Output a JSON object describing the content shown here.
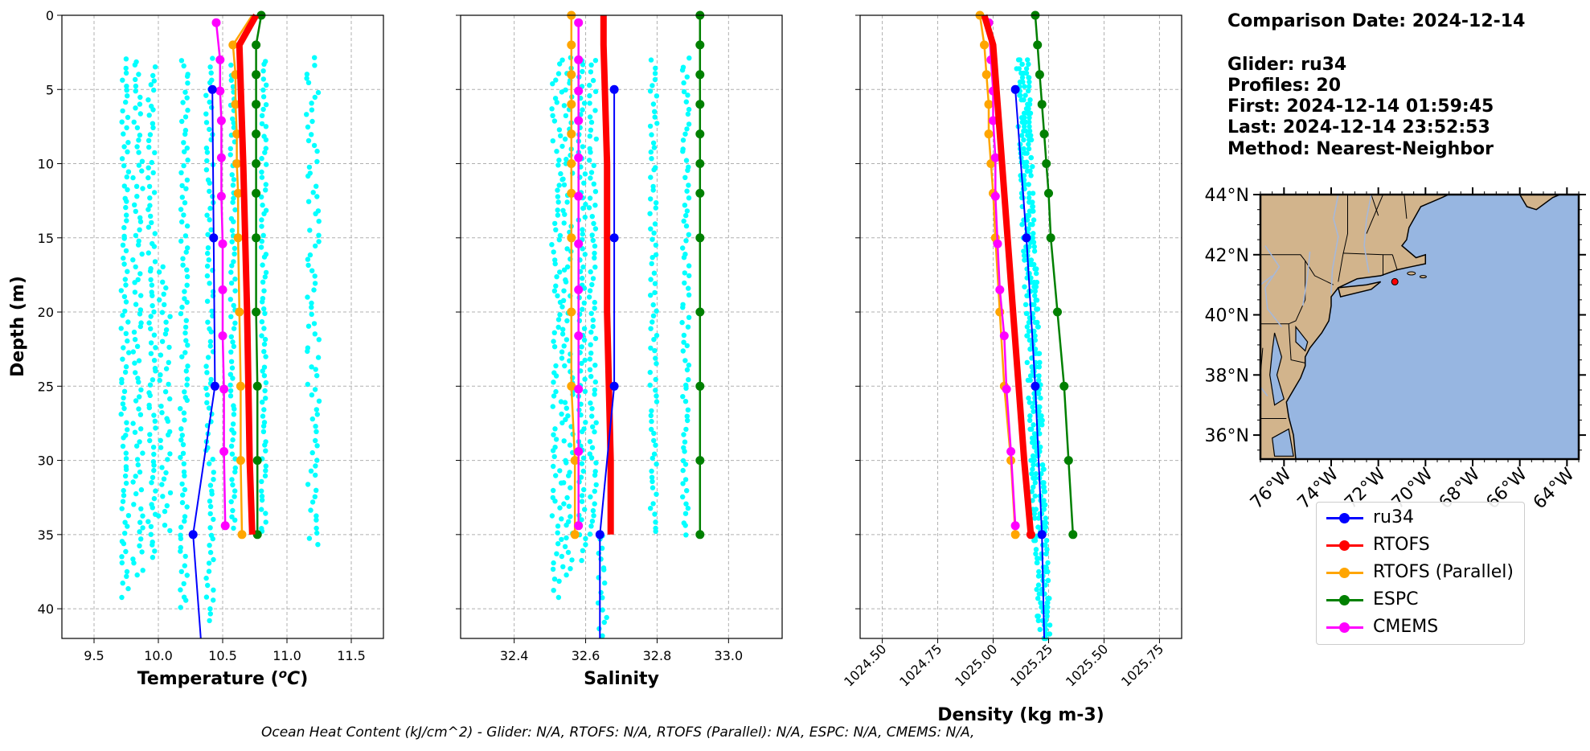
{
  "colors": {
    "ru34": "#0000ff",
    "RTOFS": "#ff0000",
    "RTOFS (Parallel)": "#ffa500",
    "ESPC": "#008000",
    "CMEMS": "#ff00ff",
    "glider_scatter": "#00ffff",
    "land": "#d2b48c",
    "ocean": "#97b6e1",
    "rivers": "#a6b8d9"
  },
  "info": {
    "comparison_date": "Comparison Date: 2024-12-14",
    "glider": "Glider: ru34",
    "profiles": "Profiles: 20",
    "first": "First: 2024-12-14 01:59:45",
    "last": "Last: 2024-12-14 23:52:53",
    "method": "Method: Nearest-Neighbor"
  },
  "footer": "Ocean Heat Content (kJ/cm^2) - Glider: N/A,  RTOFS: N/A,  RTOFS (Parallel): N/A,  ESPC: N/A,  CMEMS: N/A,",
  "legend": [
    "ru34",
    "RTOFS",
    "RTOFS (Parallel)",
    "ESPC",
    "CMEMS"
  ],
  "chart_data": [
    {
      "type": "line",
      "xlabel": "Temperature (°C)",
      "ylabel": "Depth (m)",
      "xlim": [
        9.25,
        11.75
      ],
      "ylim": [
        42,
        0
      ],
      "xticks": [
        "9.5",
        "10.0",
        "10.5",
        "11.0",
        "11.5"
      ],
      "xtick_values": [
        9.5,
        10.0,
        10.5,
        11.0,
        11.5
      ],
      "yticks": [
        "0",
        "5",
        "10",
        "15",
        "20",
        "25",
        "30",
        "35",
        "40"
      ],
      "grid": true,
      "glider_scatter_columns": [
        {
          "x": 9.74,
          "depth": [
            3,
            39.5
          ],
          "spread": 0.03
        },
        {
          "x": 9.84,
          "depth": [
            3,
            38
          ],
          "spread": 0.04
        },
        {
          "x": 9.95,
          "depth": [
            3.5,
            37
          ],
          "spread": 0.03
        },
        {
          "x": 10.05,
          "depth": [
            17,
            35
          ],
          "spread": 0.05
        },
        {
          "x": 10.2,
          "depth": [
            3,
            40
          ],
          "spread": 0.03
        },
        {
          "x": 10.4,
          "depth": [
            3,
            41
          ],
          "spread": 0.03
        },
        {
          "x": 10.58,
          "depth": [
            3.5,
            35
          ],
          "spread": 0.02
        },
        {
          "x": 10.82,
          "depth": [
            3,
            35
          ],
          "spread": 0.02
        },
        {
          "x": 11.2,
          "depth": [
            3,
            36
          ],
          "spread": 0.05
        }
      ],
      "series": [
        {
          "name": "ru34",
          "x": [
            10.42,
            10.43,
            10.44,
            10.27,
            10.33
          ],
          "depth": [
            5,
            15,
            25,
            35,
            42
          ],
          "markers": [
            5,
            15,
            25,
            35
          ]
        },
        {
          "name": "RTOFS",
          "x": [
            10.76,
            10.63,
            10.66,
            10.69,
            10.71,
            10.73
          ],
          "depth": [
            0,
            2,
            10,
            20,
            30,
            35
          ],
          "markers": []
        },
        {
          "name": "RTOFS (Parallel)",
          "x": [
            10.73,
            10.58,
            10.6,
            10.6,
            10.61,
            10.61,
            10.62,
            10.62,
            10.63,
            10.64,
            10.64,
            10.65
          ],
          "depth": [
            0,
            2,
            4,
            6,
            8,
            10,
            12,
            15,
            20,
            25,
            30,
            35
          ],
          "markers": [
            2,
            4,
            6,
            8,
            10,
            12,
            15,
            20,
            25,
            30,
            35
          ]
        },
        {
          "name": "ESPC",
          "x": [
            10.8,
            10.76,
            10.76,
            10.76,
            10.76,
            10.76,
            10.76,
            10.76,
            10.76,
            10.77,
            10.77,
            10.77
          ],
          "depth": [
            0,
            2,
            4,
            6,
            8,
            10,
            12,
            15,
            20,
            25,
            30,
            35
          ],
          "markers": [
            0,
            2,
            4,
            6,
            8,
            10,
            12,
            15,
            20,
            25,
            30,
            35
          ]
        },
        {
          "name": "CMEMS",
          "x": [
            10.45,
            10.48,
            10.48,
            10.49,
            10.49,
            10.49,
            10.5,
            10.5,
            10.5,
            10.51,
            10.51,
            10.52
          ],
          "depth": [
            0.5,
            3,
            5.1,
            7.1,
            9.6,
            12.2,
            15.4,
            18.5,
            21.6,
            25.2,
            29.4,
            34.4
          ],
          "markers": [
            0.5,
            3,
            5.1,
            7.1,
            9.6,
            12.2,
            15.4,
            18.5,
            21.6,
            25.2,
            29.4,
            34.4
          ]
        }
      ]
    },
    {
      "type": "line",
      "xlabel": "Salinity",
      "ylabel": "",
      "xlim": [
        32.25,
        33.15
      ],
      "ylim": [
        42,
        0
      ],
      "xticks": [
        "32.4",
        "32.6",
        "32.8",
        "33.0"
      ],
      "xtick_values": [
        32.4,
        32.6,
        32.8,
        33.0
      ],
      "grid": true,
      "glider_scatter_columns": [
        {
          "x": 32.52,
          "depth": [
            3,
            39.5
          ],
          "spread": 0.015
        },
        {
          "x": 32.55,
          "depth": [
            3,
            38
          ],
          "spread": 0.015
        },
        {
          "x": 32.59,
          "depth": [
            3,
            37
          ],
          "spread": 0.01
        },
        {
          "x": 32.62,
          "depth": [
            3,
            35
          ],
          "spread": 0.01
        },
        {
          "x": 32.65,
          "depth": [
            35,
            42
          ],
          "spread": 0.015
        },
        {
          "x": 32.79,
          "depth": [
            3,
            35
          ],
          "spread": 0.01
        },
        {
          "x": 32.88,
          "depth": [
            3,
            35
          ],
          "spread": 0.01
        }
      ],
      "series": [
        {
          "name": "ru34",
          "x": [
            32.68,
            32.68,
            32.68,
            32.64,
            32.64
          ],
          "depth": [
            5,
            15,
            25,
            35,
            42
          ],
          "markers": [
            5,
            15,
            25,
            35
          ]
        },
        {
          "name": "RTOFS",
          "x": [
            32.65,
            32.65,
            32.66,
            32.66,
            32.67,
            32.67
          ],
          "depth": [
            0,
            2,
            10,
            20,
            30,
            35
          ],
          "markers": []
        },
        {
          "name": "RTOFS (Parallel)",
          "x": [
            32.56,
            32.56,
            32.56,
            32.56,
            32.56,
            32.56,
            32.56,
            32.56,
            32.56,
            32.56,
            32.57,
            32.57
          ],
          "depth": [
            0,
            2,
            4,
            6,
            8,
            10,
            12,
            15,
            20,
            25,
            30,
            35
          ],
          "markers": [
            0,
            2,
            4,
            6,
            8,
            10,
            12,
            15,
            20,
            25,
            30,
            35
          ]
        },
        {
          "name": "ESPC",
          "x": [
            32.92,
            32.92,
            32.92,
            32.92,
            32.92,
            32.92,
            32.92,
            32.92,
            32.92,
            32.92,
            32.92,
            32.92
          ],
          "depth": [
            0,
            2,
            4,
            6,
            8,
            10,
            12,
            15,
            20,
            25,
            30,
            35
          ],
          "markers": [
            0,
            2,
            4,
            6,
            8,
            10,
            12,
            15,
            20,
            25,
            30,
            35
          ]
        },
        {
          "name": "CMEMS",
          "x": [
            32.58,
            32.58,
            32.58,
            32.58,
            32.58,
            32.58,
            32.58,
            32.58,
            32.58,
            32.58,
            32.58,
            32.58
          ],
          "depth": [
            0.5,
            3,
            5.1,
            7.1,
            9.6,
            12.2,
            15.4,
            18.5,
            21.6,
            25.2,
            29.4,
            34.4
          ],
          "markers": [
            0.5,
            3,
            5.1,
            7.1,
            9.6,
            12.2,
            15.4,
            18.5,
            21.6,
            25.2,
            29.4,
            34.4
          ]
        }
      ]
    },
    {
      "type": "line",
      "xlabel": "Density (kg m-3)",
      "ylabel": "",
      "xlim": [
        1024.4,
        1025.85
      ],
      "ylim": [
        42,
        0
      ],
      "xticks": [
        "1024.50",
        "1024.75",
        "1025.00",
        "1025.25",
        "1025.50",
        "1025.75"
      ],
      "xtick_values": [
        1024.5,
        1024.75,
        1025.0,
        1025.25,
        1025.5,
        1025.75
      ],
      "grid": true,
      "glider_scatter_band": {
        "x_top": [
          1025.1,
          1025.16
        ],
        "x_bottom": [
          1025.2,
          1025.26
        ],
        "depth": [
          3,
          42
        ]
      },
      "series": [
        {
          "name": "ru34",
          "x": [
            1025.1,
            1025.15,
            1025.19,
            1025.22,
            1025.23
          ],
          "depth": [
            5,
            15,
            25,
            35,
            42
          ],
          "markers": [
            5,
            15,
            25,
            35
          ]
        },
        {
          "name": "RTOFS",
          "x": [
            1024.96,
            1025.0,
            1025.04,
            1025.09,
            1025.14,
            1025.17
          ],
          "depth": [
            0,
            2,
            10,
            20,
            30,
            35
          ],
          "markers": [
            35
          ]
        },
        {
          "name": "RTOFS (Parallel)",
          "x": [
            1024.94,
            1024.96,
            1024.97,
            1024.98,
            1024.98,
            1024.99,
            1025.0,
            1025.01,
            1025.03,
            1025.05,
            1025.08,
            1025.1
          ],
          "depth": [
            0,
            2,
            4,
            6,
            8,
            10,
            12,
            15,
            20,
            25,
            30,
            35
          ],
          "markers": [
            0,
            2,
            4,
            6,
            8,
            10,
            12,
            15,
            20,
            25,
            30,
            35
          ]
        },
        {
          "name": "ESPC",
          "x": [
            1025.19,
            1025.2,
            1025.21,
            1025.22,
            1025.23,
            1025.24,
            1025.25,
            1025.26,
            1025.29,
            1025.32,
            1025.34,
            1025.36
          ],
          "depth": [
            0,
            2,
            4,
            6,
            8,
            10,
            12,
            15,
            20,
            25,
            30,
            35
          ],
          "markers": [
            0,
            2,
            4,
            6,
            8,
            10,
            12,
            15,
            20,
            25,
            30,
            35
          ]
        },
        {
          "name": "CMEMS",
          "x": [
            1024.98,
            1024.99,
            1025.0,
            1025.0,
            1025.01,
            1025.01,
            1025.02,
            1025.03,
            1025.05,
            1025.06,
            1025.08,
            1025.1
          ],
          "depth": [
            0.5,
            3,
            5.1,
            7.1,
            9.6,
            12.2,
            15.4,
            18.5,
            21.6,
            25.2,
            29.4,
            34.4
          ],
          "markers": [
            0.5,
            3,
            5.1,
            7.1,
            9.6,
            12.2,
            15.4,
            18.5,
            21.6,
            25.2,
            29.4,
            34.4
          ]
        }
      ]
    }
  ],
  "map": {
    "lon_range": [
      -77,
      -63.5
    ],
    "lat_range": [
      35.2,
      44
    ],
    "lat_ticks": [
      "44°N",
      "42°N",
      "40°N",
      "38°N",
      "36°N"
    ],
    "lat_tick_values": [
      44,
      42,
      40,
      38,
      36
    ],
    "lon_ticks": [
      "76°W",
      "74°W",
      "72°W",
      "70°W",
      "68°W",
      "66°W",
      "64°W"
    ],
    "lon_tick_values": [
      -76,
      -74,
      -72,
      -70,
      -68,
      -66,
      -64
    ],
    "glider_position": {
      "lon": -71.3,
      "lat": 41.1
    }
  }
}
